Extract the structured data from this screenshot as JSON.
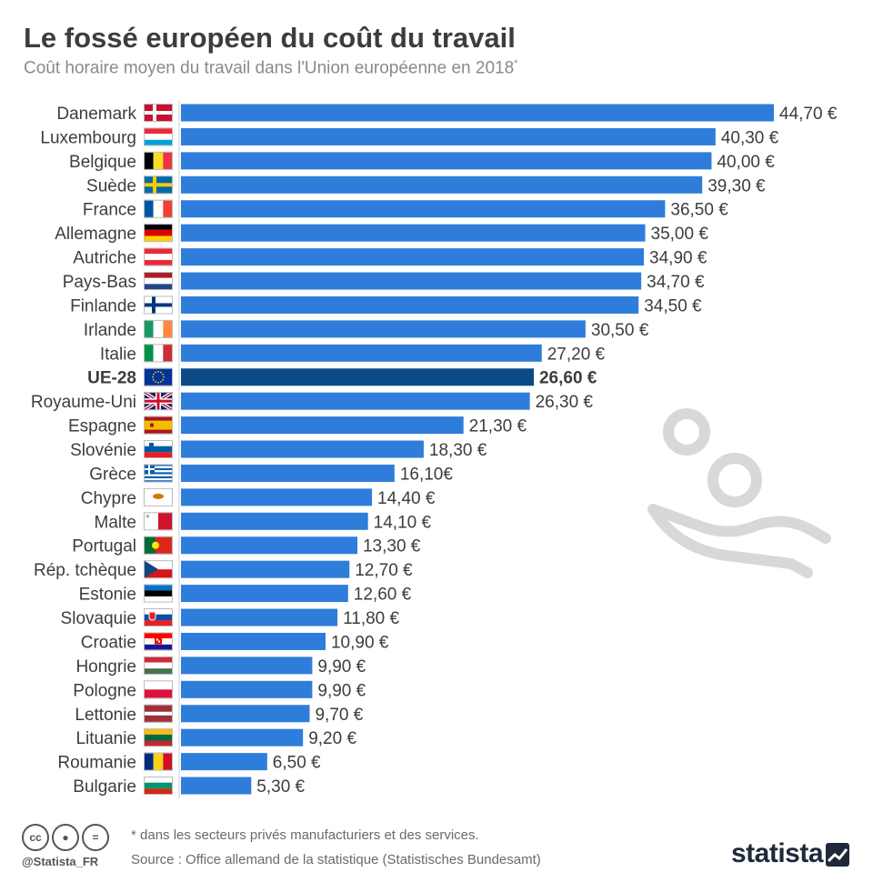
{
  "title": "Le fossé européen du coût du travail",
  "subtitle": "Coût horaire moyen du travail dans l'Union européenne en 2018",
  "subtitle_mark": "*",
  "footer": {
    "note": "* dans les secteurs privés manufacturiers et des services.",
    "source": "Source : Office allemand de la statistique (Statistisches Bundesamt)",
    "handle": "@Statista_FR",
    "brand": "statista"
  },
  "cc_icons": [
    "cc-icon",
    "attribution-icon",
    "no-derivatives-icon"
  ],
  "colors": {
    "bar": "#2f7ddb",
    "bar_highlight": "#0b4a86",
    "label": "#3d3d3d",
    "deco": "#d8d8d8"
  },
  "chart_data": {
    "type": "bar",
    "orientation": "horizontal",
    "unit": "€",
    "highlight": "UE-28",
    "categories": [
      "Danemark",
      "Luxembourg",
      "Belgique",
      "Suède",
      "France",
      "Allemagne",
      "Autriche",
      "Pays-Bas",
      "Finlande",
      "Irlande",
      "Italie",
      "UE-28",
      "Royaume-Uni",
      "Espagne",
      "Slovénie",
      "Grèce",
      "Chypre",
      "Malte",
      "Portugal",
      "Rép. tchèque",
      "Estonie",
      "Slovaquie",
      "Croatie",
      "Hongrie",
      "Pologne",
      "Lettonie",
      "Lituanie",
      "Roumanie",
      "Bulgarie"
    ],
    "values": [
      44.7,
      40.3,
      40.0,
      39.3,
      36.5,
      35.0,
      34.9,
      34.7,
      34.5,
      30.5,
      27.2,
      26.6,
      26.3,
      21.3,
      18.3,
      16.1,
      14.4,
      14.1,
      13.3,
      12.7,
      12.6,
      11.8,
      10.9,
      9.9,
      9.9,
      9.7,
      9.2,
      6.5,
      5.3
    ],
    "value_labels": [
      "44,70 €",
      "40,30 €",
      "40,00 €",
      "39,30 €",
      "36,50 €",
      "35,00 €",
      "34,90 €",
      "34,70 €",
      "34,50 €",
      "30,50 €",
      "27,20 €",
      "26,60 €",
      "26,30 €",
      "21,30 €",
      "18,30 €",
      "16,10€",
      "14,40 €",
      "14,10 €",
      "13,30 €",
      "12,70 €",
      "12,60 €",
      "11,80 €",
      "10,90 €",
      "9,90 €",
      "9,90 €",
      "9,70 €",
      "9,20 €",
      "6,50 €",
      "5,30 €"
    ],
    "flags": [
      "flag-denmark-icon",
      "flag-luxembourg-icon",
      "flag-belgium-icon",
      "flag-sweden-icon",
      "flag-france-icon",
      "flag-germany-icon",
      "flag-austria-icon",
      "flag-netherlands-icon",
      "flag-finland-icon",
      "flag-ireland-icon",
      "flag-italy-icon",
      "flag-eu-icon",
      "flag-uk-icon",
      "flag-spain-icon",
      "flag-slovenia-icon",
      "flag-greece-icon",
      "flag-cyprus-icon",
      "flag-malta-icon",
      "flag-portugal-icon",
      "flag-czechia-icon",
      "flag-estonia-icon",
      "flag-slovakia-icon",
      "flag-croatia-icon",
      "flag-hungary-icon",
      "flag-poland-icon",
      "flag-latvia-icon",
      "flag-lithuania-icon",
      "flag-romania-icon",
      "flag-bulgaria-icon"
    ],
    "xlim": [
      0,
      44.7
    ],
    "grid": false,
    "legend": "none"
  }
}
